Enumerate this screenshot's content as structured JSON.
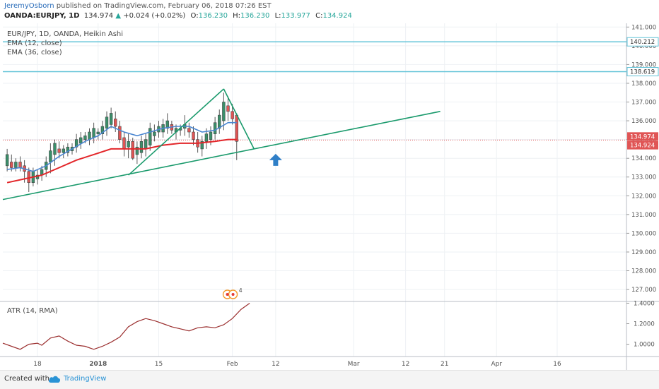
{
  "header": {
    "author": "JeremyOsborn",
    "published_text": " published on TradingView.com, February 06, 2018 07:26 EST",
    "symbol": "OANDA:EURJPY, 1D",
    "last": "134.974",
    "change": "+0.024 (+0.02%)",
    "o_label": "O:",
    "o_value": "136.230",
    "h_label": "H:",
    "h_value": "136.230",
    "l_label": "L:",
    "l_value": "133.977",
    "c_label": "C:",
    "c_value": "134.924"
  },
  "legend": {
    "title": "EUR/JPY, 1D, OANDA, Heikin Ashi",
    "ema12": "EMA (12, close)",
    "ema36": "EMA (36, close)",
    "atr": "ATR (14, RMA)"
  },
  "footer": {
    "created_text": "Created with",
    "brand": "TradingView"
  },
  "events_badge": "4",
  "colors": {
    "up": "#3a8f6a",
    "down": "#e05555",
    "ema12": "#4a86d1",
    "ema36": "#e3262a",
    "trendline": "#1a9a6c",
    "hline": "#62c3d8",
    "atr": "#9b2f2f",
    "arrow": "#2f7fc7",
    "grid": "#eef1f4"
  },
  "chart_data": [
    {
      "type": "candlestick",
      "series_name": "EUR/JPY Heikin Ashi",
      "price_axis": {
        "ticks": [
          "127.000",
          "128.000",
          "129.000",
          "130.000",
          "131.000",
          "132.000",
          "133.000",
          "134.000",
          "135.000",
          "136.000",
          "137.000",
          "138.000",
          "139.000",
          "140.000",
          "141.000"
        ],
        "ylim": [
          126.4,
          141.2
        ]
      },
      "time_axis": {
        "ticks": [
          {
            "day": 8,
            "label": "18"
          },
          {
            "day": 22,
            "label": "2018"
          },
          {
            "day": 36,
            "label": "15"
          },
          {
            "day": 53,
            "label": "Feb"
          },
          {
            "day": 63,
            "label": "12"
          },
          {
            "day": 81,
            "label": "Mar"
          },
          {
            "day": 93,
            "label": "12"
          },
          {
            "day": 102,
            "label": "21"
          },
          {
            "day": 114,
            "label": "Apr"
          },
          {
            "day": 128,
            "label": "16"
          }
        ],
        "xlim": [
          0,
          144
        ]
      },
      "candles": [
        {
          "day": 1,
          "o": 133.6,
          "h": 134.5,
          "l": 133.3,
          "c": 134.2
        },
        {
          "day": 2,
          "o": 133.8,
          "h": 134.2,
          "l": 133.3,
          "c": 133.5
        },
        {
          "day": 3,
          "o": 133.5,
          "h": 134.0,
          "l": 133.3,
          "c": 133.8
        },
        {
          "day": 4,
          "o": 133.8,
          "h": 134.1,
          "l": 133.3,
          "c": 133.5
        },
        {
          "day": 5,
          "o": 133.6,
          "h": 133.9,
          "l": 132.7,
          "c": 133.3
        },
        {
          "day": 6,
          "o": 133.3,
          "h": 133.5,
          "l": 132.2,
          "c": 132.7
        },
        {
          "day": 7,
          "o": 132.7,
          "h": 133.5,
          "l": 132.5,
          "c": 133.3
        },
        {
          "day": 8,
          "o": 132.9,
          "h": 133.4,
          "l": 132.6,
          "c": 133.1
        },
        {
          "day": 9,
          "o": 133.1,
          "h": 133.6,
          "l": 132.8,
          "c": 133.4
        },
        {
          "day": 10,
          "o": 133.4,
          "h": 134.1,
          "l": 133.0,
          "c": 133.8
        },
        {
          "day": 11,
          "o": 133.8,
          "h": 134.8,
          "l": 133.2,
          "c": 134.4
        },
        {
          "day": 12,
          "o": 134.2,
          "h": 135.0,
          "l": 133.6,
          "c": 134.8
        },
        {
          "day": 13,
          "o": 134.5,
          "h": 134.9,
          "l": 134.0,
          "c": 134.3
        },
        {
          "day": 14,
          "o": 134.3,
          "h": 134.7,
          "l": 134.0,
          "c": 134.5
        },
        {
          "day": 15,
          "o": 134.3,
          "h": 134.8,
          "l": 134.1,
          "c": 134.6
        },
        {
          "day": 16,
          "o": 134.4,
          "h": 134.8,
          "l": 134.2,
          "c": 134.6
        },
        {
          "day": 17,
          "o": 134.6,
          "h": 135.3,
          "l": 134.3,
          "c": 135.0
        },
        {
          "day": 18,
          "o": 134.8,
          "h": 135.4,
          "l": 134.5,
          "c": 135.1
        },
        {
          "day": 19,
          "o": 135.0,
          "h": 135.4,
          "l": 134.8,
          "c": 135.2
        },
        {
          "day": 20,
          "o": 135.0,
          "h": 135.6,
          "l": 134.7,
          "c": 135.4
        },
        {
          "day": 21,
          "o": 135.1,
          "h": 135.9,
          "l": 134.8,
          "c": 135.6
        },
        {
          "day": 22,
          "o": 135.3,
          "h": 135.6,
          "l": 135.0,
          "c": 135.4
        },
        {
          "day": 23,
          "o": 135.3,
          "h": 136.0,
          "l": 135.0,
          "c": 135.7
        },
        {
          "day": 24,
          "o": 135.6,
          "h": 136.5,
          "l": 135.2,
          "c": 136.2
        },
        {
          "day": 25,
          "o": 135.8,
          "h": 136.7,
          "l": 135.6,
          "c": 136.4
        },
        {
          "day": 26,
          "o": 136.1,
          "h": 136.5,
          "l": 135.4,
          "c": 135.7
        },
        {
          "day": 27,
          "o": 135.7,
          "h": 136.0,
          "l": 134.8,
          "c": 135.0
        },
        {
          "day": 28,
          "o": 135.1,
          "h": 135.4,
          "l": 134.1,
          "c": 134.5
        },
        {
          "day": 29,
          "o": 134.6,
          "h": 135.3,
          "l": 134.0,
          "c": 134.9
        },
        {
          "day": 30,
          "o": 134.9,
          "h": 135.1,
          "l": 133.9,
          "c": 134.0
        },
        {
          "day": 31,
          "o": 134.2,
          "h": 134.9,
          "l": 133.7,
          "c": 134.6
        },
        {
          "day": 32,
          "o": 134.3,
          "h": 135.2,
          "l": 134.0,
          "c": 134.9
        },
        {
          "day": 33,
          "o": 134.5,
          "h": 135.3,
          "l": 134.1,
          "c": 135.0
        },
        {
          "day": 34,
          "o": 134.7,
          "h": 135.9,
          "l": 134.4,
          "c": 135.6
        },
        {
          "day": 35,
          "o": 135.2,
          "h": 135.8,
          "l": 134.9,
          "c": 135.4
        },
        {
          "day": 36,
          "o": 135.4,
          "h": 136.0,
          "l": 135.1,
          "c": 135.7
        },
        {
          "day": 37,
          "o": 135.4,
          "h": 136.1,
          "l": 135.1,
          "c": 135.8
        },
        {
          "day": 38,
          "o": 135.6,
          "h": 136.4,
          "l": 135.3,
          "c": 136.0
        },
        {
          "day": 39,
          "o": 135.8,
          "h": 136.0,
          "l": 135.3,
          "c": 135.5
        },
        {
          "day": 40,
          "o": 135.4,
          "h": 135.8,
          "l": 135.0,
          "c": 135.6
        },
        {
          "day": 41,
          "o": 135.5,
          "h": 135.8,
          "l": 135.2,
          "c": 135.6
        },
        {
          "day": 42,
          "o": 135.6,
          "h": 136.3,
          "l": 135.2,
          "c": 135.8
        },
        {
          "day": 43,
          "o": 135.6,
          "h": 135.9,
          "l": 135.1,
          "c": 135.4
        },
        {
          "day": 44,
          "o": 135.4,
          "h": 135.7,
          "l": 134.7,
          "c": 135.0
        },
        {
          "day": 45,
          "o": 135.0,
          "h": 135.4,
          "l": 134.3,
          "c": 134.6
        },
        {
          "day": 46,
          "o": 134.5,
          "h": 135.2,
          "l": 134.1,
          "c": 134.9
        },
        {
          "day": 47,
          "o": 134.9,
          "h": 135.6,
          "l": 134.5,
          "c": 135.3
        },
        {
          "day": 48,
          "o": 135.0,
          "h": 135.7,
          "l": 134.7,
          "c": 135.4
        },
        {
          "day": 49,
          "o": 135.3,
          "h": 136.2,
          "l": 135.0,
          "c": 135.9
        },
        {
          "day": 50,
          "o": 135.6,
          "h": 136.6,
          "l": 135.3,
          "c": 136.3
        },
        {
          "day": 51,
          "o": 136.0,
          "h": 137.5,
          "l": 135.5,
          "c": 137.0
        },
        {
          "day": 52,
          "o": 136.8,
          "h": 137.3,
          "l": 136.0,
          "c": 136.5
        },
        {
          "day": 53,
          "o": 136.5,
          "h": 136.9,
          "l": 135.8,
          "c": 136.1
        },
        {
          "day": 54,
          "o": 136.3,
          "h": 136.4,
          "l": 133.9,
          "c": 134.9
        }
      ],
      "ema12": [
        [
          1,
          133.4
        ],
        [
          4,
          133.5
        ],
        [
          7,
          133.3
        ],
        [
          10,
          133.6
        ],
        [
          13,
          134.1
        ],
        [
          16,
          134.5
        ],
        [
          19,
          134.9
        ],
        [
          22,
          135.2
        ],
        [
          25,
          135.7
        ],
        [
          28,
          135.4
        ],
        [
          31,
          135.2
        ],
        [
          34,
          135.4
        ],
        [
          37,
          135.6
        ],
        [
          40,
          135.7
        ],
        [
          43,
          135.7
        ],
        [
          46,
          135.4
        ],
        [
          49,
          135.5
        ],
        [
          52,
          135.9
        ],
        [
          54,
          135.9
        ]
      ],
      "ema36": [
        [
          1,
          132.7
        ],
        [
          5,
          132.9
        ],
        [
          9,
          133.1
        ],
        [
          13,
          133.5
        ],
        [
          17,
          133.9
        ],
        [
          21,
          134.2
        ],
        [
          25,
          134.5
        ],
        [
          29,
          134.5
        ],
        [
          33,
          134.5
        ],
        [
          37,
          134.7
        ],
        [
          41,
          134.8
        ],
        [
          45,
          134.8
        ],
        [
          49,
          134.9
        ],
        [
          52,
          135.0
        ],
        [
          54,
          135.0
        ]
      ],
      "trendlines": [
        {
          "from": [
            0,
            131.8
          ],
          "to": [
            101,
            136.5
          ]
        },
        {
          "from": [
            29,
            133.1
          ],
          "to": [
            51,
            137.7
          ]
        },
        {
          "from": [
            51,
            137.7
          ],
          "to": [
            58,
            134.5
          ]
        }
      ],
      "horizontal_levels": [
        {
          "price": 140.212,
          "label": "140.212"
        },
        {
          "price": 138.619,
          "label": "138.619"
        }
      ],
      "price_labels": [
        {
          "price": 134.974,
          "label": "134.974",
          "color": "#e05555"
        },
        {
          "price": 134.924,
          "label": "134.924",
          "color": "#e05555"
        }
      ],
      "arrow": {
        "day": 63,
        "price": 133.9,
        "direction": "up"
      }
    },
    {
      "type": "line",
      "series_name": "ATR (14, RMA)",
      "ticks": [
        "1.0000",
        "1.2000",
        "1.4000"
      ],
      "ylim": [
        0.88,
        1.41
      ],
      "points": [
        [
          0,
          1.01
        ],
        [
          2,
          0.98
        ],
        [
          4,
          0.95
        ],
        [
          6,
          1.0
        ],
        [
          8,
          1.01
        ],
        [
          9,
          0.99
        ],
        [
          11,
          1.06
        ],
        [
          13,
          1.08
        ],
        [
          15,
          1.03
        ],
        [
          17,
          0.99
        ],
        [
          19,
          0.98
        ],
        [
          21,
          0.95
        ],
        [
          23,
          0.98
        ],
        [
          25,
          1.02
        ],
        [
          27,
          1.07
        ],
        [
          29,
          1.17
        ],
        [
          31,
          1.22
        ],
        [
          33,
          1.25
        ],
        [
          35,
          1.23
        ],
        [
          37,
          1.2
        ],
        [
          39,
          1.17
        ],
        [
          41,
          1.15
        ],
        [
          43,
          1.13
        ],
        [
          45,
          1.16
        ],
        [
          47,
          1.17
        ],
        [
          49,
          1.16
        ],
        [
          51,
          1.19
        ],
        [
          53,
          1.25
        ],
        [
          55,
          1.34
        ],
        [
          57,
          1.4
        ]
      ]
    }
  ]
}
